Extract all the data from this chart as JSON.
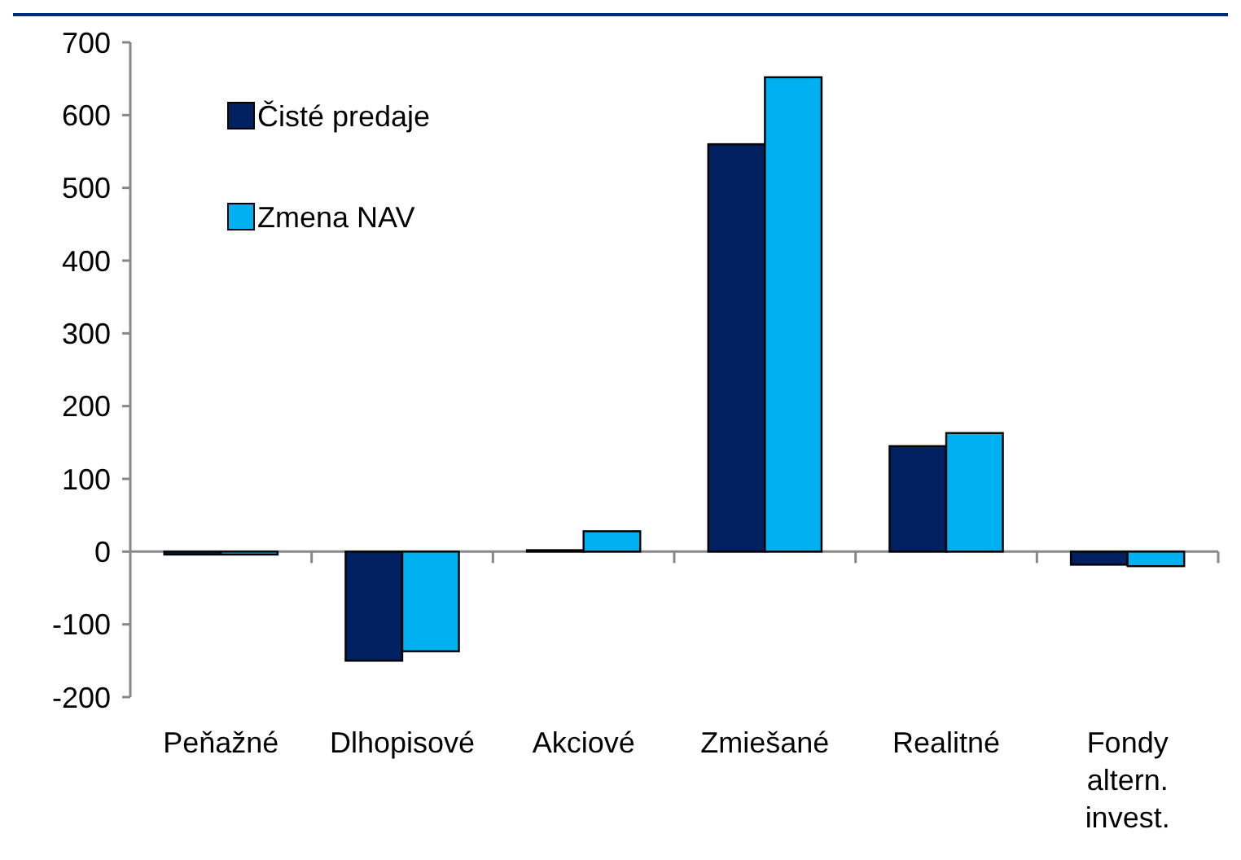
{
  "chart_data": {
    "type": "bar",
    "categories": [
      "Peňažné",
      "Dlhopisové",
      "Akciové",
      "Zmiešané",
      "Realitné",
      "Fondy altern. invest."
    ],
    "series": [
      {
        "name": "Čisté predaje",
        "color": "#002060",
        "values": [
          -4,
          -150,
          2,
          560,
          145,
          -18
        ]
      },
      {
        "name": "Zmena NAV",
        "color": "#00b0f0",
        "values": [
          -4,
          -137,
          28,
          652,
          163,
          -20
        ]
      }
    ],
    "ylim": [
      -200,
      700
    ],
    "yticks": [
      -200,
      -100,
      0,
      100,
      200,
      300,
      400,
      500,
      600,
      700
    ],
    "legend": "top left"
  }
}
